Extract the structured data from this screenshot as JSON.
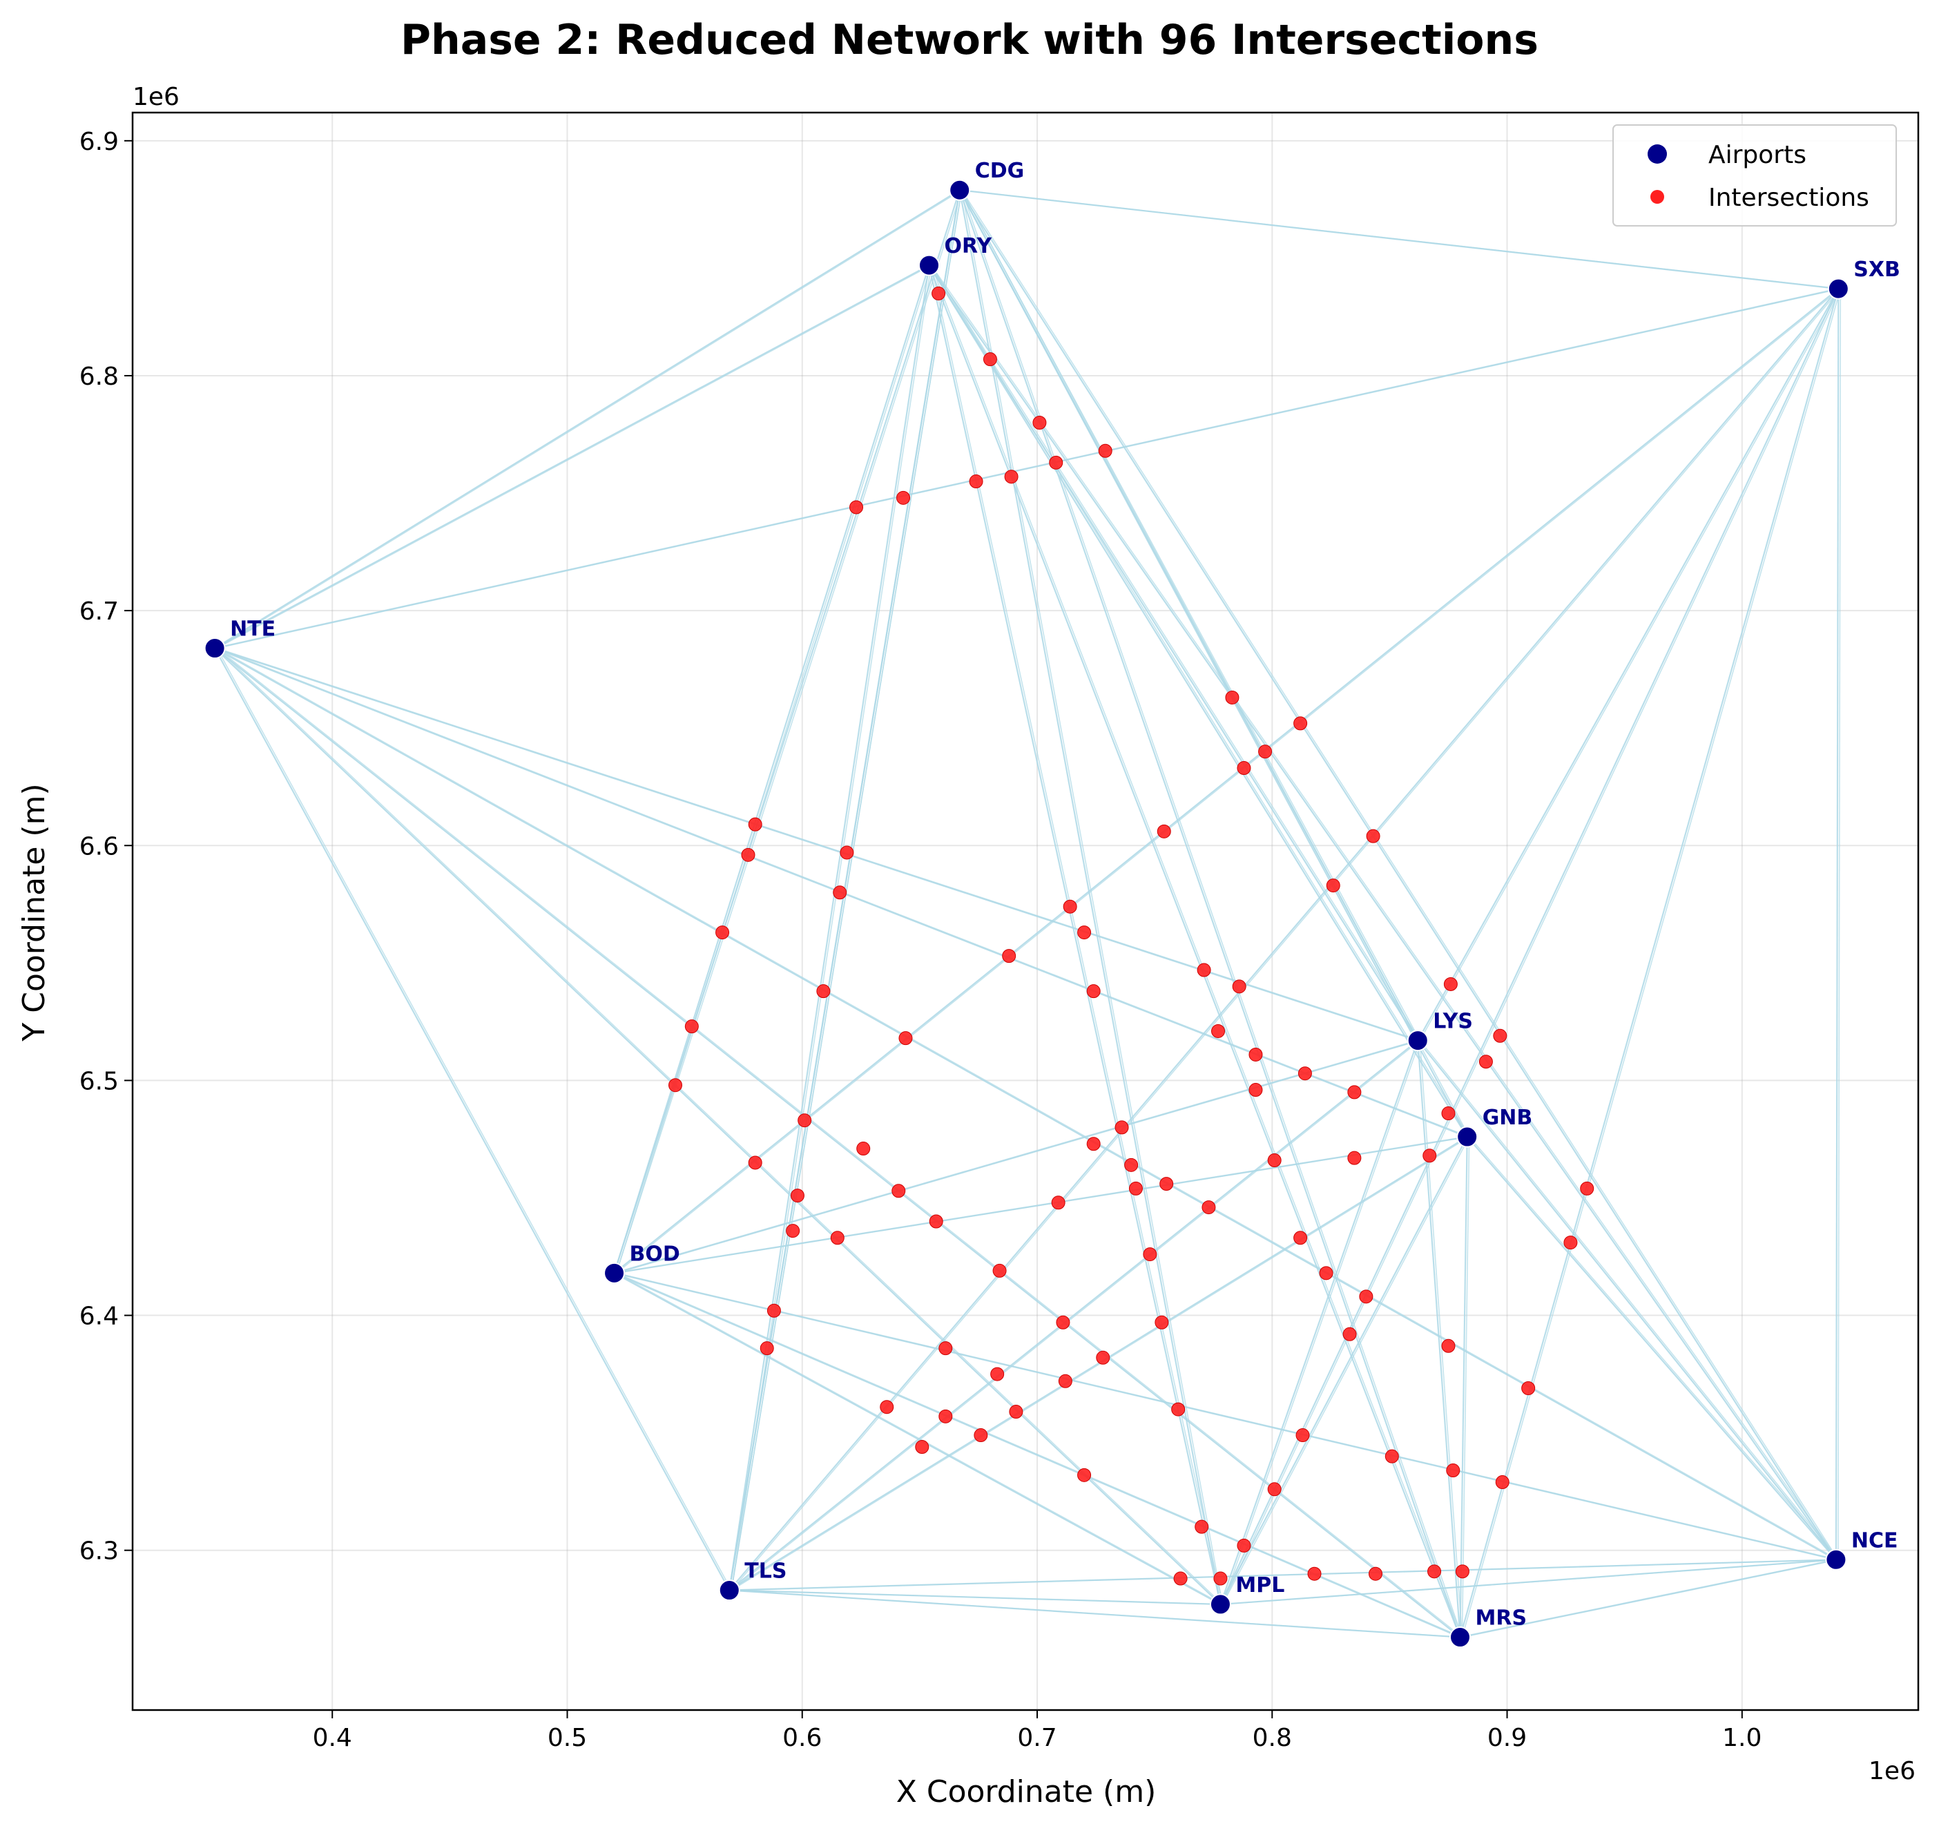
{
  "chart_data": {
    "type": "scatter",
    "title": "Phase 2: Reduced Network with 96 Intersections",
    "xlabel": "X Coordinate (m)",
    "ylabel": "Y Coordinate (m)",
    "x_offset_label": "1e6",
    "y_offset_label": "1e6",
    "xlim": [
      315000,
      1075000
    ],
    "ylim": [
      6232000,
      6912000
    ],
    "x_ticks": [
      400000,
      500000,
      600000,
      700000,
      800000,
      900000,
      1000000
    ],
    "x_tick_labels": [
      "0.4",
      "0.5",
      "0.6",
      "0.7",
      "0.8",
      "0.9",
      "1.0"
    ],
    "y_ticks": [
      6300000,
      6400000,
      6500000,
      6600000,
      6700000,
      6800000,
      6900000
    ],
    "y_tick_labels": [
      "6.3",
      "6.4",
      "6.5",
      "6.6",
      "6.7",
      "6.8",
      "6.9"
    ],
    "grid": true,
    "legend_position": "top-right",
    "legend": [
      {
        "label": "Airports",
        "color": "#00008b"
      },
      {
        "label": "Intersections",
        "color": "#ff2020"
      }
    ],
    "colors": {
      "airport": "#00008b",
      "intersection": "#ff2020",
      "route": "#add8e6",
      "airport_label": "#00008b"
    },
    "airports": [
      {
        "code": "CDG",
        "x": 667000,
        "y": 6879000
      },
      {
        "code": "ORY",
        "x": 654000,
        "y": 6847000
      },
      {
        "code": "SXB",
        "x": 1041000,
        "y": 6837000
      },
      {
        "code": "NTE",
        "x": 350000,
        "y": 6684000
      },
      {
        "code": "LYS",
        "x": 862000,
        "y": 6517000
      },
      {
        "code": "GNB",
        "x": 883000,
        "y": 6476000
      },
      {
        "code": "BOD",
        "x": 520000,
        "y": 6418000
      },
      {
        "code": "TLS",
        "x": 569000,
        "y": 6283000
      },
      {
        "code": "MPL",
        "x": 778000,
        "y": 6277000
      },
      {
        "code": "MRS",
        "x": 880000,
        "y": 6263000
      },
      {
        "code": "NCE",
        "x": 1040000,
        "y": 6296000
      }
    ],
    "routes": [
      [
        "CDG",
        "SXB"
      ],
      [
        "CDG",
        "NTE"
      ],
      [
        "ORY",
        "NTE"
      ],
      [
        "SXB",
        "NTE"
      ],
      [
        "SXB",
        "NCE"
      ],
      [
        "ORY",
        "BOD"
      ],
      [
        "CDG",
        "BOD"
      ],
      [
        "ORY",
        "TLS"
      ],
      [
        "CDG",
        "TLS"
      ],
      [
        "ORY",
        "MPL"
      ],
      [
        "CDG",
        "MPL"
      ],
      [
        "ORY",
        "MRS"
      ],
      [
        "CDG",
        "MRS"
      ],
      [
        "ORY",
        "LYS"
      ],
      [
        "CDG",
        "LYS"
      ],
      [
        "ORY",
        "NCE"
      ],
      [
        "CDG",
        "NCE"
      ],
      [
        "ORY",
        "GNB"
      ],
      [
        "CDG",
        "GNB"
      ],
      [
        "NTE",
        "LYS"
      ],
      [
        "NTE",
        "GNB"
      ],
      [
        "NTE",
        "MPL"
      ],
      [
        "NTE",
        "MRS"
      ],
      [
        "NTE",
        "TLS"
      ],
      [
        "NTE",
        "NCE"
      ],
      [
        "BOD",
        "LYS"
      ],
      [
        "BOD",
        "GNB"
      ],
      [
        "BOD",
        "NCE"
      ],
      [
        "BOD",
        "MRS"
      ],
      [
        "BOD",
        "MPL"
      ],
      [
        "TLS",
        "LYS"
      ],
      [
        "TLS",
        "GNB"
      ],
      [
        "TLS",
        "SXB"
      ],
      [
        "TLS",
        "MRS"
      ],
      [
        "TLS",
        "NCE"
      ],
      [
        "TLS",
        "MPL"
      ],
      [
        "BOD",
        "SXB"
      ],
      [
        "MPL",
        "SXB"
      ],
      [
        "MRS",
        "SXB"
      ],
      [
        "MPL",
        "LYS"
      ],
      [
        "MPL",
        "GNB"
      ],
      [
        "MRS",
        "LYS"
      ],
      [
        "MRS",
        "GNB"
      ],
      [
        "LYS",
        "NCE"
      ],
      [
        "GNB",
        "NCE"
      ],
      [
        "MPL",
        "NCE"
      ],
      [
        "MRS",
        "NCE"
      ],
      [
        "TLS",
        "CDG"
      ],
      [
        "LYS",
        "SXB"
      ]
    ],
    "intersections": [
      [
        658000,
        6835000
      ],
      [
        680000,
        6807000
      ],
      [
        701000,
        6780000
      ],
      [
        729000,
        6768000
      ],
      [
        708000,
        6763000
      ],
      [
        689000,
        6757000
      ],
      [
        674000,
        6755000
      ],
      [
        643000,
        6748000
      ],
      [
        623000,
        6744000
      ],
      [
        783000,
        6663000
      ],
      [
        812000,
        6652000
      ],
      [
        797000,
        6640000
      ],
      [
        788000,
        6633000
      ],
      [
        580000,
        6609000
      ],
      [
        577000,
        6596000
      ],
      [
        619000,
        6597000
      ],
      [
        754000,
        6606000
      ],
      [
        843000,
        6604000
      ],
      [
        616000,
        6580000
      ],
      [
        826000,
        6583000
      ],
      [
        714000,
        6574000
      ],
      [
        720000,
        6563000
      ],
      [
        566000,
        6563000
      ],
      [
        688000,
        6553000
      ],
      [
        771000,
        6547000
      ],
      [
        786000,
        6540000
      ],
      [
        609000,
        6538000
      ],
      [
        724000,
        6538000
      ],
      [
        876000,
        6541000
      ],
      [
        553000,
        6523000
      ],
      [
        644000,
        6518000
      ],
      [
        777000,
        6521000
      ],
      [
        897000,
        6519000
      ],
      [
        793000,
        6511000
      ],
      [
        891000,
        6508000
      ],
      [
        546000,
        6498000
      ],
      [
        814000,
        6503000
      ],
      [
        793000,
        6496000
      ],
      [
        835000,
        6495000
      ],
      [
        875000,
        6486000
      ],
      [
        601000,
        6483000
      ],
      [
        736000,
        6480000
      ],
      [
        724000,
        6473000
      ],
      [
        867000,
        6468000
      ],
      [
        801000,
        6466000
      ],
      [
        580000,
        6465000
      ],
      [
        740000,
        6464000
      ],
      [
        755000,
        6456000
      ],
      [
        742000,
        6454000
      ],
      [
        641000,
        6453000
      ],
      [
        598000,
        6451000
      ],
      [
        709000,
        6448000
      ],
      [
        773000,
        6446000
      ],
      [
        657000,
        6440000
      ],
      [
        596000,
        6436000
      ],
      [
        615000,
        6433000
      ],
      [
        812000,
        6433000
      ],
      [
        934000,
        6454000
      ],
      [
        927000,
        6431000
      ],
      [
        748000,
        6426000
      ],
      [
        684000,
        6419000
      ],
      [
        823000,
        6418000
      ],
      [
        840000,
        6408000
      ],
      [
        588000,
        6402000
      ],
      [
        753000,
        6397000
      ],
      [
        711000,
        6397000
      ],
      [
        833000,
        6392000
      ],
      [
        875000,
        6387000
      ],
      [
        585000,
        6386000
      ],
      [
        661000,
        6386000
      ],
      [
        728000,
        6382000
      ],
      [
        683000,
        6375000
      ],
      [
        712000,
        6372000
      ],
      [
        909000,
        6369000
      ],
      [
        636000,
        6361000
      ],
      [
        760000,
        6360000
      ],
      [
        661000,
        6357000
      ],
      [
        691000,
        6359000
      ],
      [
        676000,
        6349000
      ],
      [
        813000,
        6349000
      ],
      [
        651000,
        6344000
      ],
      [
        851000,
        6340000
      ],
      [
        720000,
        6332000
      ],
      [
        877000,
        6334000
      ],
      [
        898000,
        6329000
      ],
      [
        801000,
        6326000
      ],
      [
        770000,
        6310000
      ],
      [
        788000,
        6302000
      ],
      [
        761000,
        6288000
      ],
      [
        778000,
        6288000
      ],
      [
        818000,
        6290000
      ],
      [
        844000,
        6290000
      ],
      [
        869000,
        6291000
      ],
      [
        881000,
        6291000
      ],
      [
        626000,
        6471000
      ],
      [
        835000,
        6467000
      ]
    ]
  }
}
